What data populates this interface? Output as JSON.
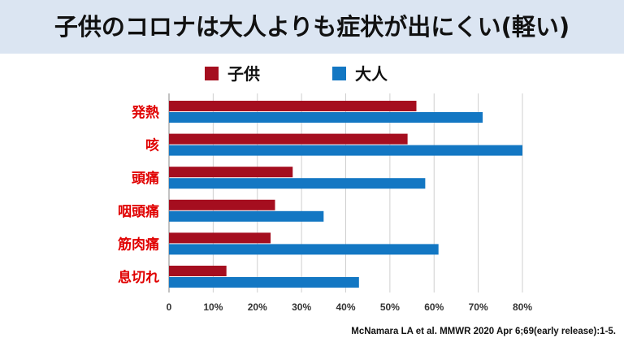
{
  "title": "子供のコロナは大人よりも症状が出にくい(軽い)",
  "source": "McNamara LA et al. MMWR 2020 Apr 6;69(early release):1-5.",
  "colors": {
    "title_bg": "#dbe5f2",
    "children": "#a50e1f",
    "adults": "#1377c3",
    "category_text": "#e00000",
    "grid": "#cfcfcf"
  },
  "chart_data": {
    "type": "bar",
    "orientation": "horizontal",
    "categories": [
      "発熱",
      "咳",
      "頭痛",
      "咽頭痛",
      "筋肉痛",
      "息切れ"
    ],
    "series": [
      {
        "name": "子供",
        "values": [
          56,
          54,
          28,
          24,
          23,
          13
        ]
      },
      {
        "name": "大人",
        "values": [
          71,
          80,
          58,
          35,
          61,
          43
        ]
      }
    ],
    "xlim": [
      0,
      80
    ],
    "xticks": [
      "0",
      "10%",
      "20%",
      "30%",
      "40%",
      "50%",
      "60%",
      "70%",
      "80%"
    ],
    "grid": true,
    "legend_position": "top"
  }
}
